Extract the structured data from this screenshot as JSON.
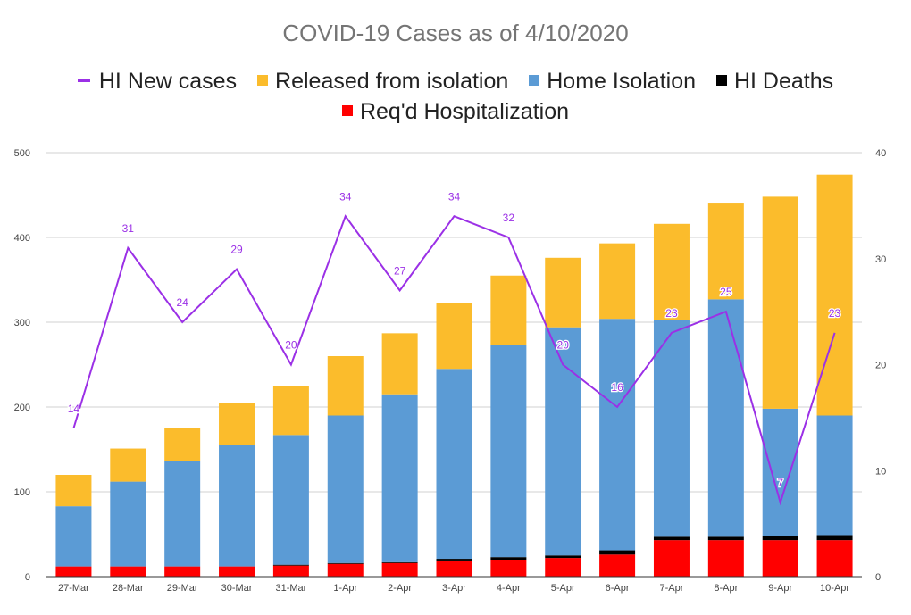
{
  "chart_data": {
    "type": "bar",
    "title": "COVID-19 Cases as of 4/10/2020",
    "categories": [
      "27-Mar",
      "28-Mar",
      "29-Mar",
      "30-Mar",
      "31-Mar",
      "1-Apr",
      "2-Apr",
      "3-Apr",
      "4-Apr",
      "5-Apr",
      "6-Apr",
      "7-Apr",
      "8-Apr",
      "9-Apr",
      "10-Apr"
    ],
    "stacked": true,
    "series": [
      {
        "name": "Req'd Hospitalization",
        "kind": "bar",
        "axis": "left",
        "color": "#ff0000",
        "values": [
          12,
          12,
          12,
          12,
          13,
          15,
          16,
          19,
          20,
          22,
          26,
          43,
          43,
          43,
          43
        ]
      },
      {
        "name": "HI Deaths",
        "kind": "bar",
        "axis": "left",
        "color": "#000000",
        "values": [
          0,
          0,
          0,
          0,
          1,
          1,
          1,
          2,
          3,
          3,
          5,
          4,
          4,
          5,
          6
        ]
      },
      {
        "name": "Home Isolation",
        "kind": "bar",
        "axis": "left",
        "color": "#5b9bd5",
        "values": [
          71,
          100,
          124,
          143,
          153,
          174,
          198,
          224,
          250,
          269,
          273,
          256,
          280,
          150,
          141
        ]
      },
      {
        "name": "Released from isolation",
        "kind": "bar",
        "axis": "left",
        "color": "#fbbc2c",
        "values": [
          37,
          39,
          39,
          50,
          58,
          70,
          72,
          78,
          82,
          82,
          89,
          113,
          114,
          250,
          284
        ]
      },
      {
        "name": "HI New cases",
        "kind": "line",
        "axis": "right",
        "color": "#9b30e6",
        "values": [
          14,
          31,
          24,
          29,
          20,
          34,
          27,
          34,
          32,
          20,
          16,
          23,
          25,
          7,
          23
        ]
      }
    ],
    "legend": {
      "position": "top",
      "rows": [
        [
          "HI New cases",
          "Released from isolation",
          "Home Isolation",
          "HI Deaths"
        ],
        [
          "Req'd Hospitalization"
        ]
      ]
    },
    "y_left": {
      "ylim": [
        0,
        500
      ],
      "ticks": [
        "0",
        "100",
        "200",
        "300",
        "400",
        "500"
      ]
    },
    "y_right": {
      "ylim": [
        0,
        40
      ],
      "ticks": [
        "0",
        "10",
        "20",
        "30",
        "40"
      ]
    },
    "grid": true,
    "line_data_labels": true
  }
}
